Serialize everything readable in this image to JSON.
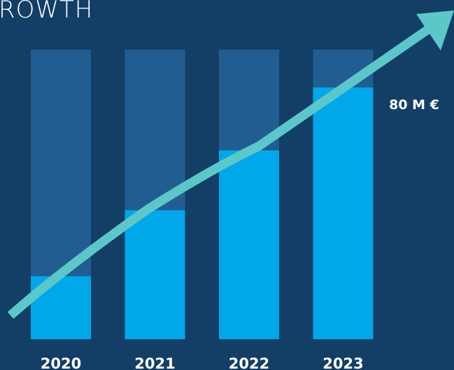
{
  "page": {
    "title": "ROWTH"
  },
  "colors": {
    "background": "#133f66",
    "bar_track": "#225d91",
    "bar_fill": "#00a8ea",
    "arrow": "#5cc7c9",
    "text": "#ffffff"
  },
  "chart_data": {
    "type": "bar",
    "categories": [
      "2020",
      "2021",
      "2022",
      "2023"
    ],
    "values": [
      20,
      41,
      60,
      80
    ],
    "ylim": [
      0,
      92
    ],
    "annotations": [
      {
        "category": "2023",
        "text": "80 M €"
      }
    ],
    "trend_arrow": true,
    "grid": false
  }
}
